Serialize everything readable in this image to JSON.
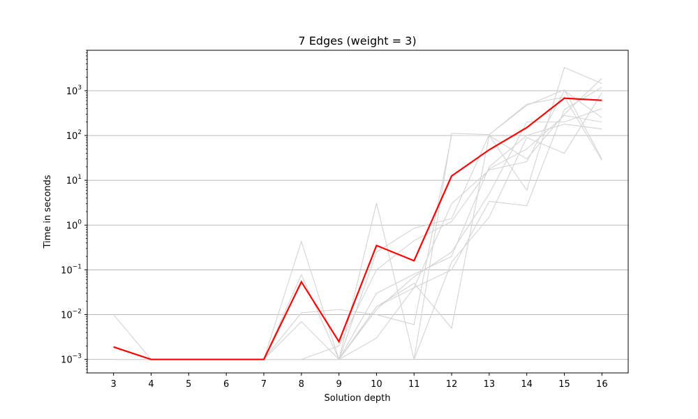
{
  "chart_data": {
    "type": "line",
    "title": "7 Edges (weight = 3)",
    "xlabel": "Solution depth",
    "ylabel": "Time in seconds",
    "yscale": "log",
    "xlim": [
      2.3,
      16.7
    ],
    "ylim": [
      0.0005,
      8000
    ],
    "grid": "horizontal major",
    "x": [
      3,
      4,
      5,
      6,
      7,
      8,
      9,
      10,
      11,
      12,
      13,
      14,
      15,
      16
    ],
    "x_tick_labels": [
      "3",
      "4",
      "5",
      "6",
      "7",
      "8",
      "9",
      "10",
      "11",
      "12",
      "13",
      "14",
      "15",
      "16"
    ],
    "y_ticks": [
      0.001,
      0.01,
      0.1,
      1,
      10,
      100,
      1000
    ],
    "y_tick_labels": [
      {
        "base": "10",
        "exp": "−3"
      },
      {
        "base": "10",
        "exp": "−2"
      },
      {
        "base": "10",
        "exp": "−1"
      },
      {
        "base": "10",
        "exp": "0"
      },
      {
        "base": "10",
        "exp": "1"
      },
      {
        "base": "10",
        "exp": "2"
      },
      {
        "base": "10",
        "exp": "3"
      }
    ],
    "series": [
      {
        "role": "mean",
        "color": "#ff0000",
        "values": [
          0.0019,
          0.001,
          0.001,
          0.001,
          0.001,
          0.054,
          0.0025,
          0.35,
          0.16,
          12.5,
          48,
          150,
          680,
          610
        ]
      },
      {
        "role": "individual",
        "color": "#d3d3d3",
        "values": [
          0.01,
          0.001,
          0.001,
          0.001,
          0.001,
          0.43,
          0.001,
          3.1,
          0.001,
          112,
          105,
          500,
          720,
          28
        ]
      },
      {
        "role": "individual",
        "color": "#d3d3d3",
        "values": [
          0.001,
          0.001,
          0.001,
          0.001,
          0.001,
          0.078,
          0.001,
          0.25,
          0.85,
          1.4,
          105,
          470,
          1050,
          30
        ]
      },
      {
        "role": "individual",
        "color": "#d3d3d3",
        "values": [
          0.001,
          0.001,
          0.001,
          0.001,
          0.001,
          0.011,
          0.013,
          0.01,
          0.006,
          100,
          100,
          30,
          300,
          1900
        ]
      },
      {
        "role": "individual",
        "color": "#d3d3d3",
        "values": [
          0.001,
          0.001,
          0.001,
          0.001,
          0.001,
          0.007,
          0.001,
          0.015,
          0.05,
          0.005,
          100,
          6,
          3300,
          1450
        ]
      },
      {
        "role": "individual",
        "color": "#d3d3d3",
        "values": [
          0.001,
          0.001,
          0.001,
          0.001,
          0.001,
          0.001,
          0.001,
          0.003,
          0.04,
          0.1,
          3.4,
          2.7,
          380,
          1200
        ]
      },
      {
        "role": "individual",
        "color": "#d3d3d3",
        "values": [
          0.001,
          0.001,
          0.001,
          0.001,
          0.001,
          0.001,
          0.001,
          0.013,
          0.07,
          0.25,
          5,
          200,
          200,
          400
        ]
      },
      {
        "role": "individual",
        "color": "#d3d3d3",
        "values": [
          0.001,
          0.001,
          0.001,
          0.001,
          0.001,
          0.001,
          0.002,
          0.1,
          0.45,
          1.2,
          18,
          50,
          280,
          200
        ]
      },
      {
        "role": "individual",
        "color": "#d3d3d3",
        "values": [
          0.001,
          0.001,
          0.001,
          0.001,
          0.001,
          0.001,
          0.001,
          0.03,
          0.08,
          0.2,
          20,
          100,
          180,
          140
        ]
      },
      {
        "role": "individual",
        "color": "#d3d3d3",
        "values": [
          0.001,
          0.001,
          0.001,
          0.001,
          0.001,
          0.001,
          0.001,
          0.001,
          0.001,
          0.15,
          1.5,
          90,
          40,
          900
        ]
      },
      {
        "role": "individual",
        "color": "#d3d3d3",
        "values": [
          0.001,
          0.001,
          0.001,
          0.001,
          0.001,
          0.001,
          0.001,
          0.015,
          0.04,
          3,
          17,
          26,
          1000,
          250
        ]
      }
    ]
  }
}
